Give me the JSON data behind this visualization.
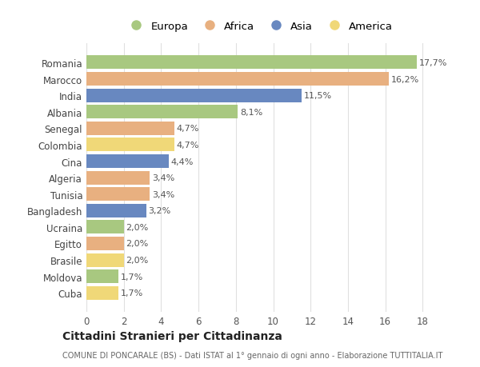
{
  "countries": [
    "Romania",
    "Marocco",
    "India",
    "Albania",
    "Senegal",
    "Colombia",
    "Cina",
    "Algeria",
    "Tunisia",
    "Bangladesh",
    "Ucraina",
    "Egitto",
    "Brasile",
    "Moldova",
    "Cuba"
  ],
  "values": [
    17.7,
    16.2,
    11.5,
    8.1,
    4.7,
    4.7,
    4.4,
    3.4,
    3.4,
    3.2,
    2.0,
    2.0,
    2.0,
    1.7,
    1.7
  ],
  "labels": [
    "17,7%",
    "16,2%",
    "11,5%",
    "8,1%",
    "4,7%",
    "4,7%",
    "4,4%",
    "3,4%",
    "3,4%",
    "3,2%",
    "2,0%",
    "2,0%",
    "2,0%",
    "1,7%",
    "1,7%"
  ],
  "continents": [
    "Europa",
    "Africa",
    "Asia",
    "Europa",
    "Africa",
    "America",
    "Asia",
    "Africa",
    "Africa",
    "Asia",
    "Europa",
    "Africa",
    "America",
    "Europa",
    "America"
  ],
  "colors": {
    "Europa": "#a8c880",
    "Africa": "#e8b080",
    "Asia": "#6888c0",
    "America": "#f0d878"
  },
  "legend_order": [
    "Europa",
    "Africa",
    "Asia",
    "America"
  ],
  "title": "Cittadini Stranieri per Cittadinanza",
  "subtitle": "COMUNE DI PONCARALE (BS) - Dati ISTAT al 1° gennaio di ogni anno - Elaborazione TUTTITALIA.IT",
  "xlabel_values": [
    0,
    2,
    4,
    6,
    8,
    10,
    12,
    14,
    16,
    18
  ],
  "xlim": [
    0,
    18.5
  ],
  "background_color": "#ffffff",
  "plot_background": "#ffffff",
  "grid_color": "#e0e0e0"
}
